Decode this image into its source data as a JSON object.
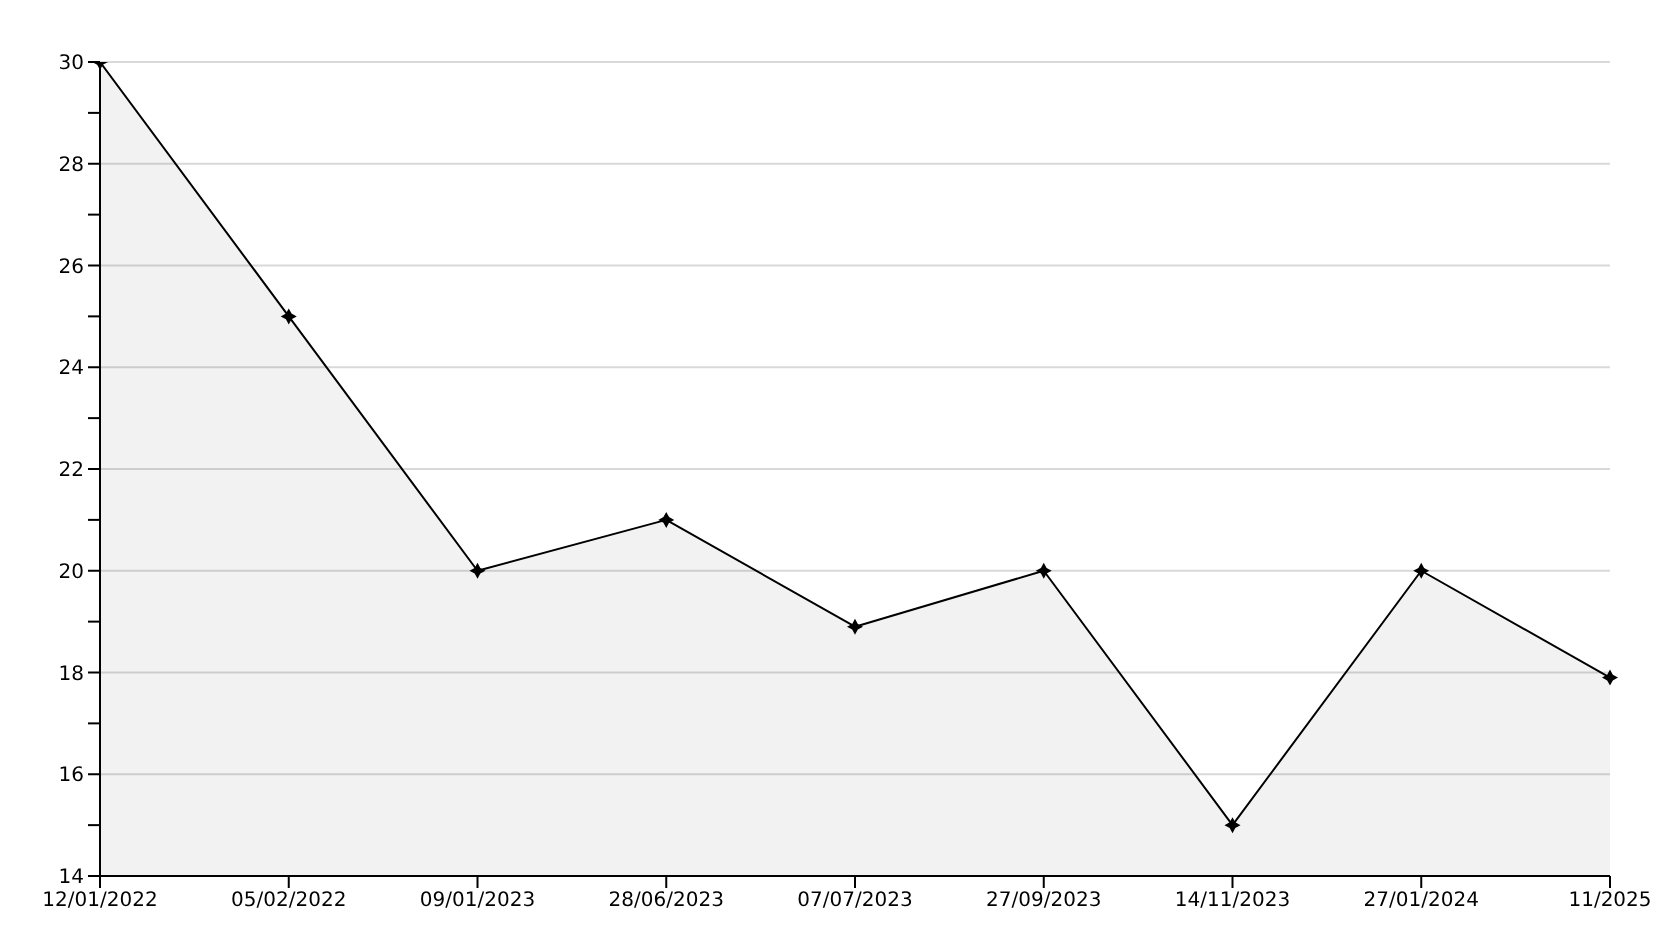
{
  "chart_data": {
    "type": "area",
    "categories": [
      "12/01/2022",
      "05/02/2022",
      "09/01/2023",
      "28/06/2023",
      "07/07/2023",
      "27/09/2023",
      "14/11/2023",
      "27/01/2024",
      "11/2025"
    ],
    "series": [
      {
        "color": "#000000",
        "values": [
          30,
          25,
          20,
          21,
          18.9,
          20,
          15,
          20,
          17.9
        ]
      }
    ],
    "ylim": [
      14,
      30
    ],
    "yticks": [
      14,
      {
        "value": 15,
        "label": null
      },
      16,
      {
        "value": 17,
        "label": null
      },
      18,
      {
        "value": 19,
        "label": null
      },
      20,
      {
        "value": 21,
        "label": null
      },
      22,
      {
        "value": 23,
        "label": null
      },
      24,
      {
        "value": 25,
        "label": null
      },
      26,
      {
        "value": 27,
        "label": null
      },
      28,
      {
        "value": 29,
        "label": null
      },
      30
    ],
    "grid": "y",
    "marker": "star",
    "line_style": "solid"
  }
}
